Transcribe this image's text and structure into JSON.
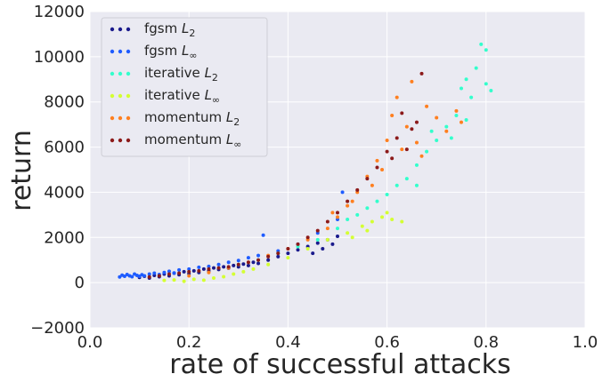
{
  "chart_data": {
    "type": "scatter",
    "title": "",
    "xlabel": "rate of successful attacks",
    "ylabel": "return",
    "xlim": [
      0.0,
      1.0
    ],
    "ylim": [
      -2000,
      12000
    ],
    "xticks": [
      "0.0",
      "0.2",
      "0.4",
      "0.6",
      "0.8",
      "1.0"
    ],
    "yticks": [
      "−2000",
      "0",
      "2000",
      "4000",
      "6000",
      "8000",
      "10000",
      "12000"
    ],
    "grid": true,
    "legend_position": "top-left",
    "series": [
      {
        "name": "fgsm",
        "subscript": "2",
        "color": "#1a1a8c",
        "points": [
          [
            0.1,
            230
          ],
          [
            0.11,
            280
          ],
          [
            0.12,
            200
          ],
          [
            0.13,
            320
          ],
          [
            0.14,
            260
          ],
          [
            0.15,
            380
          ],
          [
            0.16,
            300
          ],
          [
            0.17,
            420
          ],
          [
            0.18,
            350
          ],
          [
            0.19,
            480
          ],
          [
            0.2,
            400
          ],
          [
            0.21,
            520
          ],
          [
            0.22,
            450
          ],
          [
            0.23,
            600
          ],
          [
            0.24,
            520
          ],
          [
            0.25,
            650
          ],
          [
            0.26,
            580
          ],
          [
            0.27,
            700
          ],
          [
            0.28,
            640
          ],
          [
            0.29,
            760
          ],
          [
            0.3,
            700
          ],
          [
            0.31,
            820
          ],
          [
            0.32,
            760
          ],
          [
            0.33,
            900
          ],
          [
            0.34,
            850
          ],
          [
            0.36,
            1000
          ],
          [
            0.38,
            1150
          ],
          [
            0.4,
            1300
          ],
          [
            0.42,
            1450
          ],
          [
            0.44,
            1600
          ],
          [
            0.45,
            1300
          ],
          [
            0.46,
            1750
          ],
          [
            0.47,
            1500
          ],
          [
            0.48,
            1900
          ],
          [
            0.49,
            1700
          ],
          [
            0.5,
            2050
          ]
        ]
      },
      {
        "name": "fgsm",
        "subscript": "∞",
        "color": "#1f5cff",
        "points": [
          [
            0.06,
            250
          ],
          [
            0.065,
            330
          ],
          [
            0.07,
            280
          ],
          [
            0.075,
            360
          ],
          [
            0.08,
            300
          ],
          [
            0.085,
            260
          ],
          [
            0.09,
            380
          ],
          [
            0.095,
            320
          ],
          [
            0.1,
            280
          ],
          [
            0.105,
            350
          ],
          [
            0.11,
            300
          ],
          [
            0.12,
            380
          ],
          [
            0.13,
            420
          ],
          [
            0.14,
            360
          ],
          [
            0.15,
            450
          ],
          [
            0.16,
            500
          ],
          [
            0.17,
            430
          ],
          [
            0.18,
            560
          ],
          [
            0.2,
            600
          ],
          [
            0.22,
            680
          ],
          [
            0.24,
            720
          ],
          [
            0.26,
            800
          ],
          [
            0.28,
            900
          ],
          [
            0.3,
            980
          ],
          [
            0.32,
            1100
          ],
          [
            0.34,
            1200
          ],
          [
            0.35,
            2100
          ],
          [
            0.38,
            1400
          ],
          [
            0.42,
            1700
          ],
          [
            0.46,
            2200
          ],
          [
            0.5,
            2800
          ],
          [
            0.51,
            4000
          ]
        ]
      },
      {
        "name": "iterative",
        "subscript": "2",
        "color": "#33ffcc",
        "points": [
          [
            0.3,
            800
          ],
          [
            0.34,
            1000
          ],
          [
            0.38,
            1300
          ],
          [
            0.42,
            1600
          ],
          [
            0.46,
            1900
          ],
          [
            0.5,
            2400
          ],
          [
            0.52,
            2800
          ],
          [
            0.54,
            3000
          ],
          [
            0.56,
            3300
          ],
          [
            0.58,
            3600
          ],
          [
            0.6,
            3900
          ],
          [
            0.62,
            4300
          ],
          [
            0.64,
            4600
          ],
          [
            0.66,
            5200
          ],
          [
            0.68,
            5800
          ],
          [
            0.7,
            6300
          ],
          [
            0.72,
            6900
          ],
          [
            0.74,
            7400
          ],
          [
            0.75,
            8600
          ],
          [
            0.76,
            9000
          ],
          [
            0.77,
            8200
          ],
          [
            0.78,
            9500
          ],
          [
            0.79,
            10550
          ],
          [
            0.8,
            10300
          ],
          [
            0.8,
            8800
          ],
          [
            0.81,
            8500
          ],
          [
            0.76,
            7200
          ],
          [
            0.73,
            6400
          ],
          [
            0.69,
            6700
          ],
          [
            0.66,
            4300
          ]
        ]
      },
      {
        "name": "iterative",
        "subscript": "∞",
        "color": "#d4ff33",
        "points": [
          [
            0.15,
            100
          ],
          [
            0.17,
            120
          ],
          [
            0.19,
            60
          ],
          [
            0.21,
            150
          ],
          [
            0.23,
            110
          ],
          [
            0.25,
            200
          ],
          [
            0.27,
            260
          ],
          [
            0.29,
            380
          ],
          [
            0.31,
            480
          ],
          [
            0.33,
            600
          ],
          [
            0.36,
            800
          ],
          [
            0.4,
            1100
          ],
          [
            0.44,
            1500
          ],
          [
            0.48,
            1900
          ],
          [
            0.52,
            2200
          ],
          [
            0.55,
            2500
          ],
          [
            0.57,
            2700
          ],
          [
            0.59,
            2900
          ],
          [
            0.61,
            2800
          ],
          [
            0.63,
            2700
          ],
          [
            0.6,
            3100
          ],
          [
            0.56,
            2300
          ],
          [
            0.53,
            2000
          ]
        ]
      },
      {
        "name": "momentum",
        "subscript": "2",
        "color": "#ff7f1f",
        "points": [
          [
            0.2,
            300
          ],
          [
            0.24,
            450
          ],
          [
            0.28,
            650
          ],
          [
            0.32,
            900
          ],
          [
            0.36,
            1200
          ],
          [
            0.4,
            1500
          ],
          [
            0.44,
            1900
          ],
          [
            0.48,
            2400
          ],
          [
            0.5,
            2900
          ],
          [
            0.52,
            3400
          ],
          [
            0.54,
            4000
          ],
          [
            0.56,
            4700
          ],
          [
            0.58,
            5400
          ],
          [
            0.6,
            6300
          ],
          [
            0.61,
            7400
          ],
          [
            0.62,
            8200
          ],
          [
            0.64,
            6900
          ],
          [
            0.65,
            8900
          ],
          [
            0.66,
            6200
          ],
          [
            0.68,
            7800
          ],
          [
            0.7,
            7300
          ],
          [
            0.72,
            6700
          ],
          [
            0.74,
            7600
          ],
          [
            0.75,
            7100
          ],
          [
            0.67,
            5600
          ],
          [
            0.63,
            5900
          ],
          [
            0.59,
            5000
          ],
          [
            0.57,
            4300
          ],
          [
            0.53,
            3600
          ],
          [
            0.49,
            3100
          ]
        ]
      },
      {
        "name": "momentum",
        "subscript": "∞",
        "color": "#8c1a1a",
        "points": [
          [
            0.12,
            250
          ],
          [
            0.14,
            300
          ],
          [
            0.16,
            380
          ],
          [
            0.18,
            420
          ],
          [
            0.2,
            480
          ],
          [
            0.22,
            520
          ],
          [
            0.24,
            600
          ],
          [
            0.26,
            650
          ],
          [
            0.28,
            700
          ],
          [
            0.3,
            800
          ],
          [
            0.32,
            900
          ],
          [
            0.34,
            1000
          ],
          [
            0.36,
            1150
          ],
          [
            0.38,
            1300
          ],
          [
            0.4,
            1500
          ],
          [
            0.42,
            1700
          ],
          [
            0.44,
            2000
          ],
          [
            0.46,
            2300
          ],
          [
            0.48,
            2700
          ],
          [
            0.5,
            3100
          ],
          [
            0.52,
            3600
          ],
          [
            0.54,
            4100
          ],
          [
            0.56,
            4600
          ],
          [
            0.58,
            5100
          ],
          [
            0.6,
            5800
          ],
          [
            0.62,
            6400
          ],
          [
            0.63,
            7500
          ],
          [
            0.64,
            5900
          ],
          [
            0.66,
            7100
          ],
          [
            0.67,
            9250
          ],
          [
            0.65,
            6800
          ],
          [
            0.61,
            5500
          ]
        ]
      }
    ]
  }
}
